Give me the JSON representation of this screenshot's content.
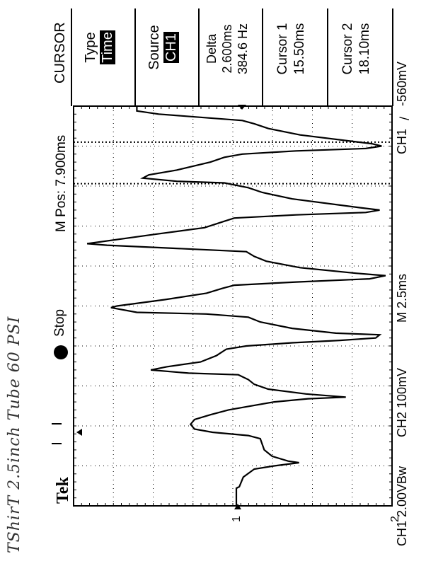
{
  "handwritten_note": "TShirT  2.5inch Tube  60 PSI",
  "scope": {
    "brand": "Tek",
    "state": "Stop",
    "m_pos": "M Pos: 7.900ms",
    "timebase": "M 2.5ms",
    "ch1_scale": "CH1 2.00VBw",
    "ch2_scale": "CH2 100mV",
    "trigger_readout": "CH1",
    "trigger_level": "-560mV",
    "marker_1": "1",
    "marker_2": "2"
  },
  "menu": {
    "title": "CURSOR",
    "type_label": "Type",
    "type_value": "Time",
    "source_label": "Source",
    "source_value": "CH1",
    "delta_label": "Delta",
    "delta_time": "2.600ms",
    "delta_freq": "384.6 Hz",
    "cursor1_label": "Cursor 1",
    "cursor1_value": "15.50ms",
    "cursor2_label": "Cursor 2",
    "cursor2_value": "18.10ms"
  },
  "chart_data": {
    "type": "line",
    "x_unit": "ms",
    "time_per_div": 2.5,
    "volts_per_div": 2.0,
    "cursor_times_ms": [
      15.5,
      18.1
    ],
    "series": [
      {
        "points": [
          [
            -4.65,
            0
          ],
          [
            -3.55,
            0
          ],
          [
            -3.45,
            0.15
          ],
          [
            -2.85,
            0.35
          ],
          [
            -2.35,
            0.9
          ],
          [
            -2.15,
            1.9
          ],
          [
            -1.95,
            3.15
          ],
          [
            -1.85,
            2.6
          ],
          [
            -1.55,
            1.8
          ],
          [
            -1.15,
            1.4
          ],
          [
            -0.45,
            1.2
          ],
          [
            -0.25,
            0.6
          ],
          [
            -0.05,
            -1.2
          ],
          [
            0.15,
            -2.1
          ],
          [
            0.45,
            -2.3
          ],
          [
            0.75,
            -2.1
          ],
          [
            1.05,
            -1.3
          ],
          [
            1.35,
            -0.4
          ],
          [
            1.55,
            0.5
          ],
          [
            1.85,
            1.9
          ],
          [
            2.05,
            3.6
          ],
          [
            2.15,
            5.5
          ],
          [
            2.35,
            3.5
          ],
          [
            2.65,
            1.6
          ],
          [
            2.95,
            0.9
          ],
          [
            3.25,
            0.6
          ],
          [
            3.55,
            0.1
          ],
          [
            3.65,
            -2.4
          ],
          [
            3.85,
            -4.3
          ],
          [
            4.05,
            -3.5
          ],
          [
            4.35,
            -1.8
          ],
          [
            4.75,
            -1.0
          ],
          [
            5.15,
            -0.5
          ],
          [
            5.35,
            0.5
          ],
          [
            5.55,
            2.8
          ],
          [
            5.7,
            5.2
          ],
          [
            5.85,
            7.0
          ],
          [
            6.05,
            7.2
          ],
          [
            6.15,
            5.0
          ],
          [
            6.45,
            2.8
          ],
          [
            6.85,
            1.2
          ],
          [
            7.15,
            0.6
          ],
          [
            7.35,
            -1.5
          ],
          [
            7.45,
            -5.0
          ],
          [
            7.75,
            -6.3
          ],
          [
            7.85,
            -6.0
          ],
          [
            8.25,
            -3.6
          ],
          [
            8.65,
            -1.5
          ],
          [
            8.95,
            -0.7
          ],
          [
            9.15,
            -0.1
          ],
          [
            9.35,
            3.0
          ],
          [
            9.55,
            6.7
          ],
          [
            9.75,
            7.5
          ],
          [
            9.9,
            6.0
          ],
          [
            10.25,
            3.2
          ],
          [
            10.65,
            1.5
          ],
          [
            10.95,
            0.9
          ],
          [
            11.25,
            0.5
          ],
          [
            11.45,
            -3.0
          ],
          [
            11.65,
            -6.5
          ],
          [
            11.75,
            -7.5
          ],
          [
            12.35,
            -4.0
          ],
          [
            12.75,
            -1.6
          ],
          [
            13.15,
            -0.6
          ],
          [
            13.35,
            -0.1
          ],
          [
            13.55,
            3.0
          ],
          [
            13.7,
            6.5
          ],
          [
            13.85,
            7.2
          ],
          [
            14.0,
            6.2
          ],
          [
            14.55,
            2.8
          ],
          [
            14.95,
            1.3
          ],
          [
            15.25,
            0.6
          ],
          [
            15.55,
            -0.6
          ],
          [
            15.65,
            -3.0
          ],
          [
            15.85,
            -4.7
          ],
          [
            16.05,
            -4.4
          ],
          [
            16.35,
            -3.0
          ],
          [
            16.85,
            -1.3
          ],
          [
            17.15,
            -0.6
          ],
          [
            17.35,
            0.3
          ],
          [
            17.55,
            3.0
          ],
          [
            17.7,
            6.5
          ],
          [
            17.85,
            7.3
          ],
          [
            18.0,
            6.8
          ],
          [
            18.55,
            3.2
          ],
          [
            18.95,
            1.6
          ],
          [
            19.25,
            0.9
          ],
          [
            19.45,
            0.3
          ],
          [
            19.65,
            -1.8
          ],
          [
            19.85,
            -3.9
          ],
          [
            20.05,
            -5.0
          ],
          [
            20.35,
            -5.0
          ]
        ]
      }
    ]
  }
}
